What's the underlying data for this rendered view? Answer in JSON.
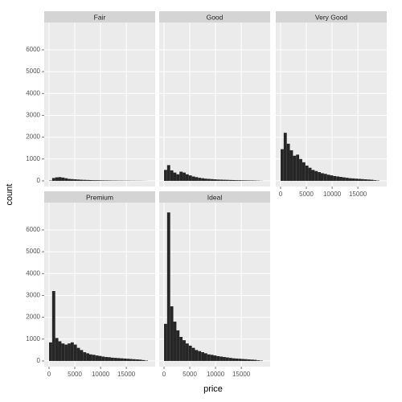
{
  "chart_data": {
    "type": "histogram",
    "xlabel": "price",
    "ylabel": "count",
    "color": "#262626",
    "bins": [
      0,
      600,
      1200,
      1800,
      2400,
      3000,
      3600,
      4200,
      4800,
      5400,
      6000,
      6600,
      7200,
      7800,
      8400,
      9000,
      9600,
      10200,
      10800,
      11400,
      12000,
      12600,
      13200,
      13800,
      14400,
      15000,
      15600,
      16200,
      16800,
      17400,
      18000,
      18600,
      19200
    ],
    "facets": [
      {
        "name": "Fair",
        "values": [
          15,
          130,
          160,
          170,
          150,
          120,
          90,
          80,
          70,
          60,
          50,
          45,
          40,
          35,
          30,
          28,
          25,
          22,
          20,
          18,
          15,
          15,
          12,
          12,
          10,
          10,
          8,
          8,
          6,
          6,
          4,
          2
        ]
      },
      {
        "name": "Good",
        "values": [
          500,
          720,
          480,
          380,
          300,
          420,
          380,
          300,
          250,
          200,
          170,
          140,
          120,
          100,
          90,
          80,
          70,
          60,
          55,
          50,
          45,
          40,
          35,
          30,
          28,
          25,
          22,
          20,
          18,
          15,
          10,
          5
        ]
      },
      {
        "name": "Very Good",
        "values": [
          1450,
          2200,
          1700,
          1400,
          1150,
          1200,
          1000,
          850,
          700,
          600,
          500,
          450,
          400,
          350,
          320,
          280,
          250,
          220,
          200,
          180,
          160,
          140,
          120,
          110,
          100,
          90,
          80,
          70,
          60,
          50,
          30,
          15
        ]
      },
      {
        "name": "Premium",
        "values": [
          850,
          3200,
          1050,
          900,
          800,
          750,
          800,
          850,
          750,
          600,
          500,
          400,
          350,
          300,
          280,
          250,
          230,
          200,
          180,
          170,
          150,
          140,
          130,
          120,
          110,
          100,
          90,
          80,
          70,
          60,
          40,
          20
        ]
      },
      {
        "name": "Ideal",
        "values": [
          1700,
          6800,
          2500,
          1800,
          1400,
          1100,
          950,
          800,
          700,
          600,
          500,
          450,
          400,
          350,
          300,
          280,
          250,
          220,
          200,
          180,
          160,
          140,
          120,
          110,
          100,
          90,
          80,
          70,
          60,
          50,
          30,
          15
        ]
      }
    ],
    "xlim": [
      -940,
      20600
    ],
    "ylim": [
      -260,
      7250
    ],
    "xticks": [
      0,
      5000,
      10000,
      15000
    ],
    "yticks": [
      0,
      1000,
      2000,
      3000,
      4000,
      5000,
      6000
    ],
    "grid": true
  }
}
